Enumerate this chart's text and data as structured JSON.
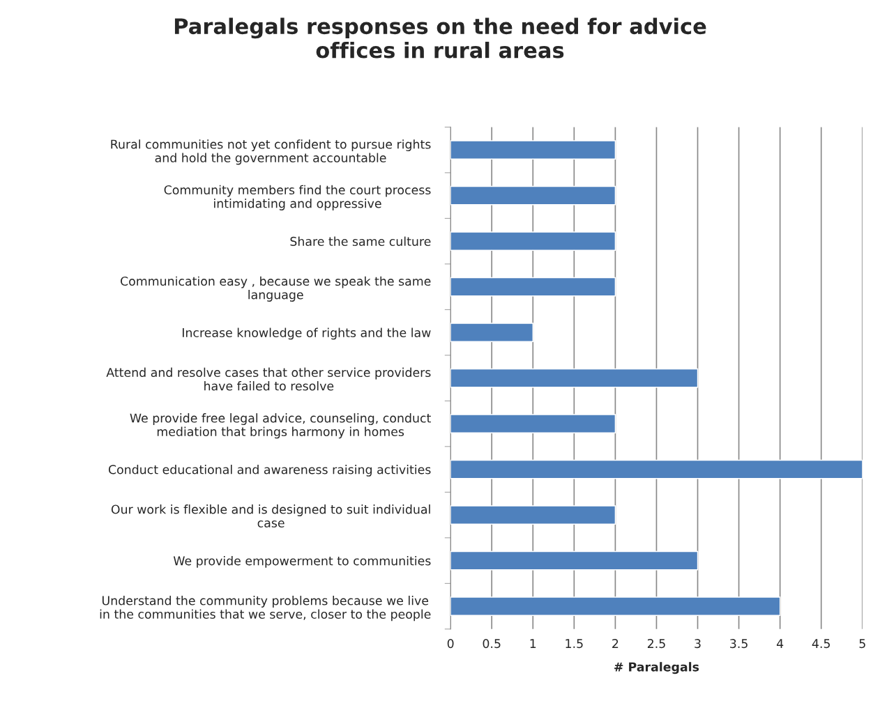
{
  "chart_data": {
    "type": "bar",
    "orientation": "horizontal",
    "title": "Paralegals responses on the need for advice\noffices in rural areas",
    "xlabel": "# Paralegals",
    "categories": [
      "Rural communities not yet confident to pursue rights\nand hold the government accountable",
      "Community members find the court process\nintimidating and oppressive",
      "Share the same culture",
      "Communication easy , because we speak the same\nlanguage",
      "Increase knowledge of rights and the law",
      "Attend and resolve cases that other service providers\nhave failed to resolve",
      "We provide free legal advice, counseling, conduct\nmediation that brings harmony in homes",
      "Conduct educational and awareness raising activities",
      "Our work is flexible and is designed to suit individual\ncase",
      "We provide empowerment to communities",
      "Understand the community problems because we live\nin the communities that we serve, closer to the people"
    ],
    "values": [
      2,
      2,
      2,
      2,
      1,
      3,
      2,
      5,
      2,
      3,
      4
    ],
    "color": "#4f81bd",
    "xlim": [
      0,
      5
    ],
    "xticks": [
      0,
      0.5,
      1,
      1.5,
      2,
      2.5,
      3,
      3.5,
      4,
      4.5,
      5
    ],
    "grid": "x"
  }
}
